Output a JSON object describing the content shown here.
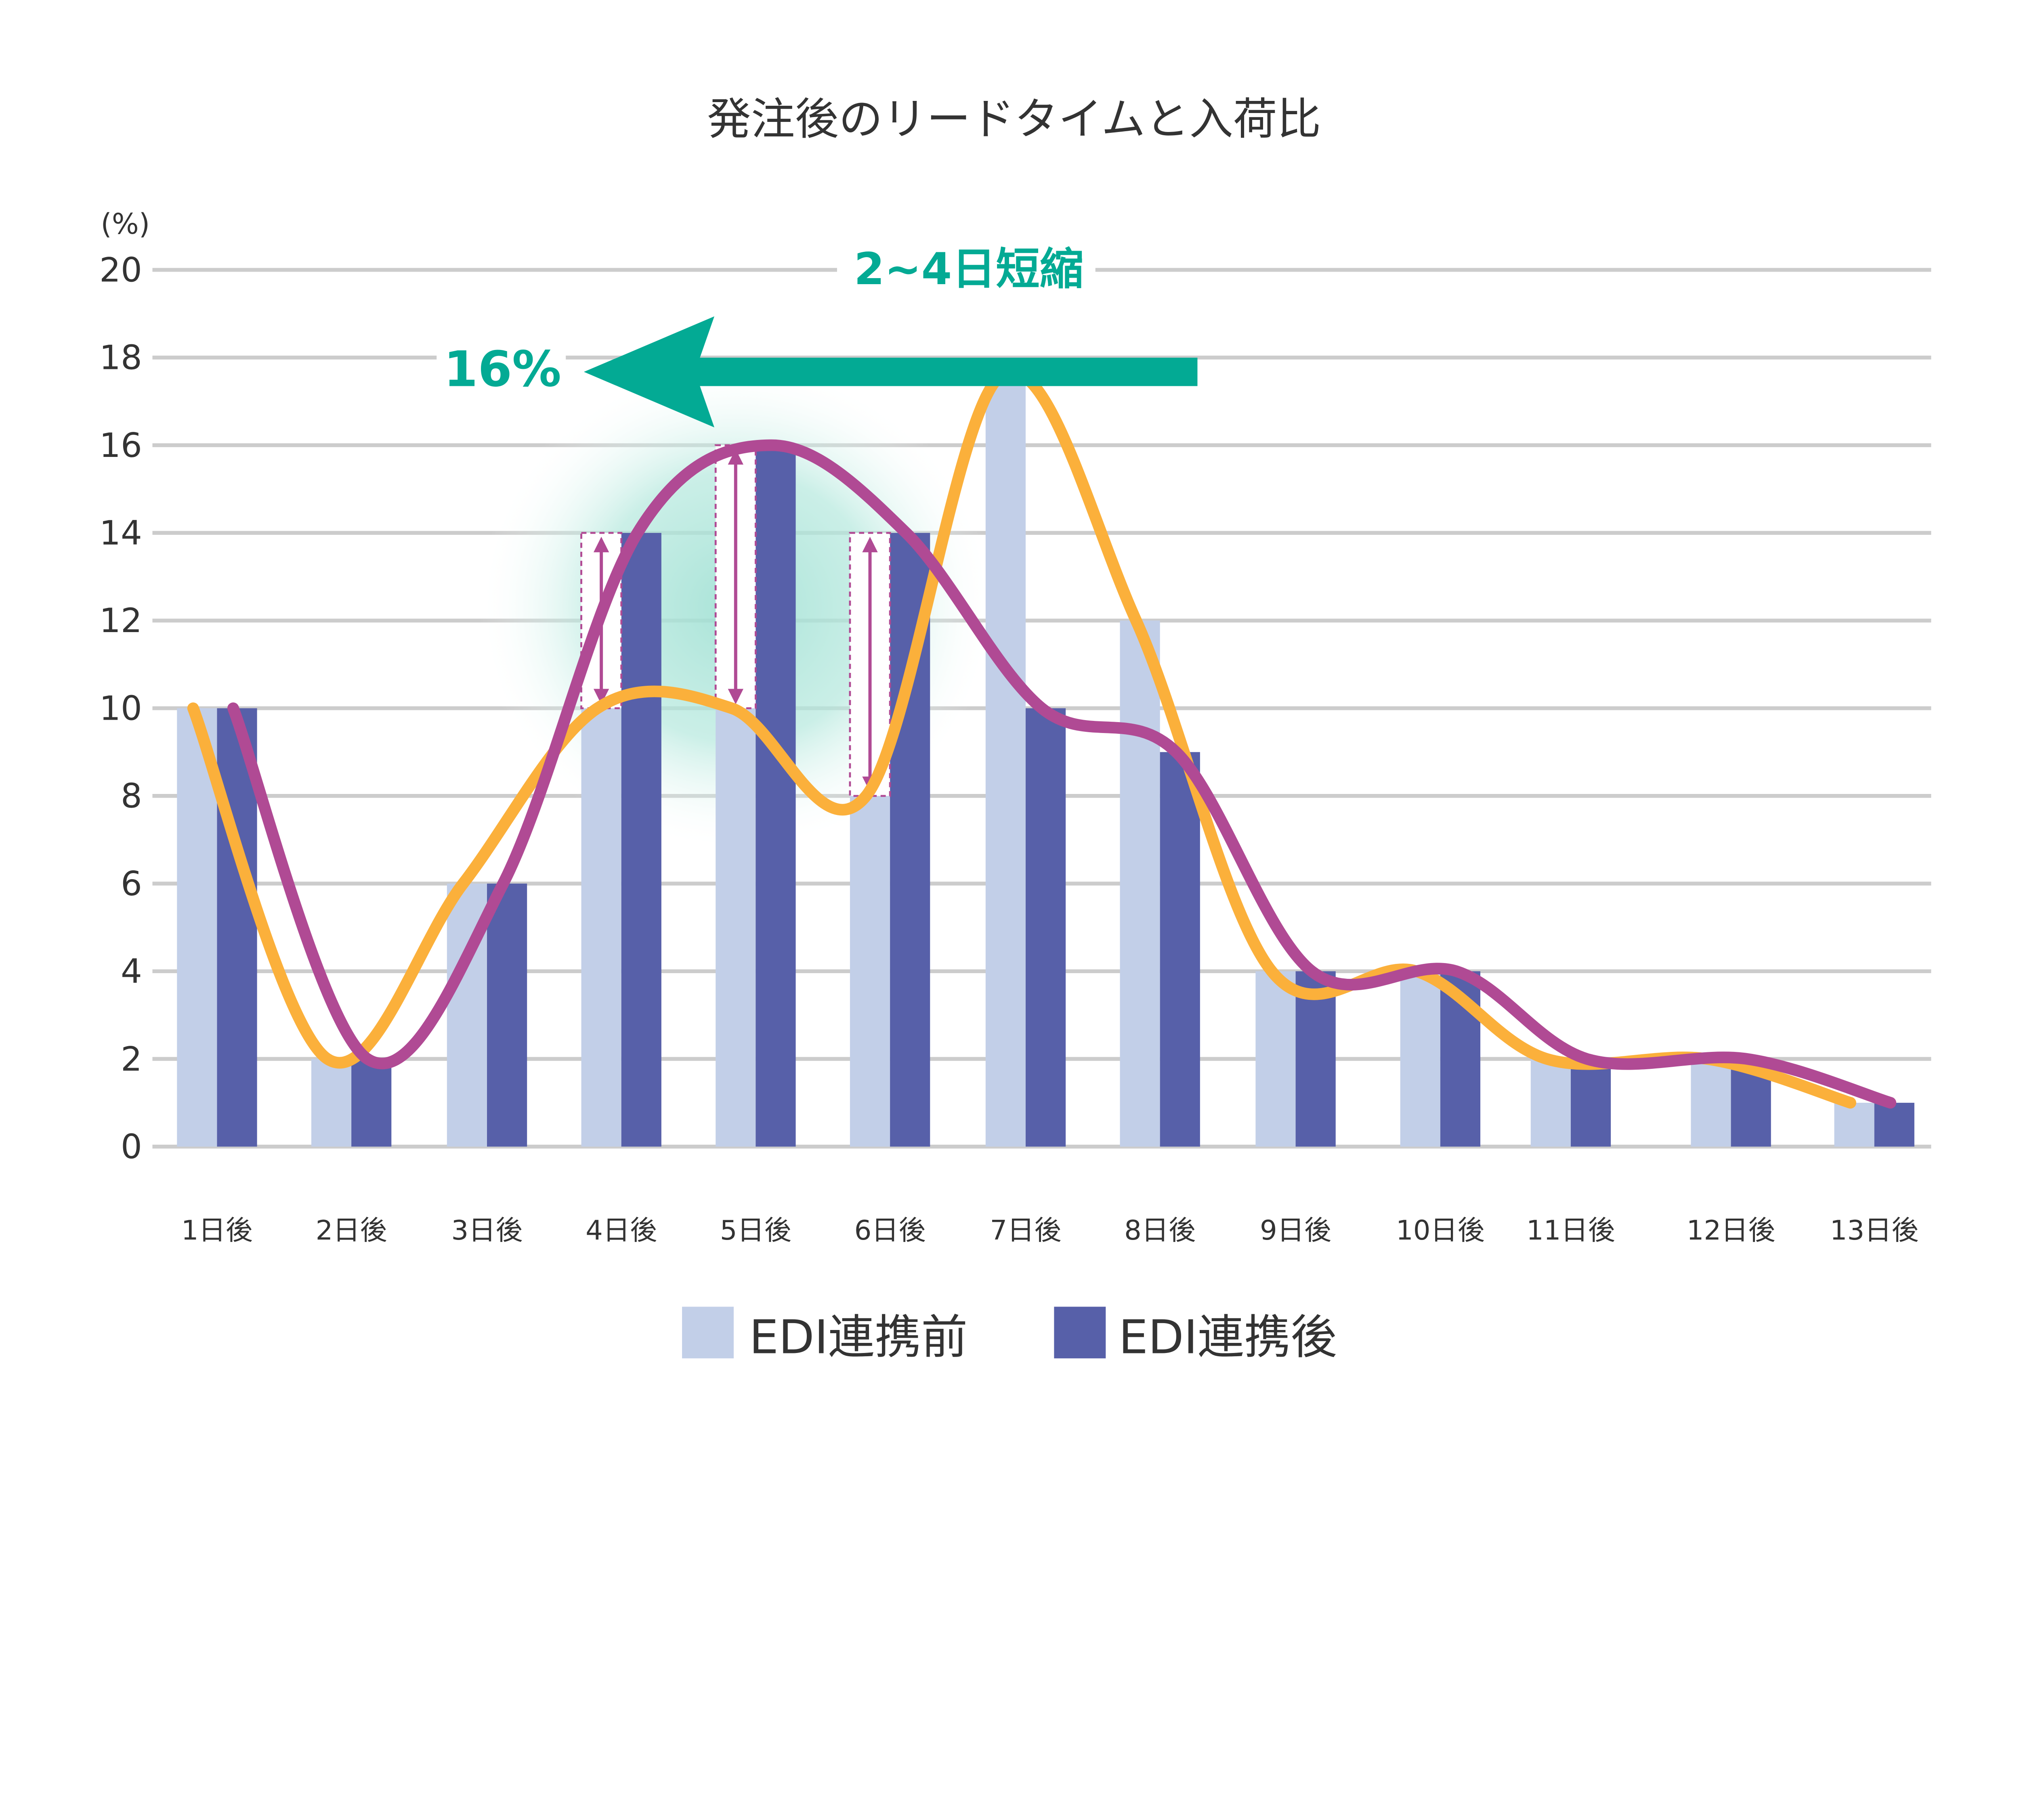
{
  "chart_data": {
    "type": "bar",
    "title": "発注後のリードタイムと入荷比",
    "ylabel": "(%)",
    "ylim": [
      0,
      20
    ],
    "yticks": [
      0,
      2,
      4,
      6,
      8,
      10,
      12,
      14,
      16,
      18,
      20
    ],
    "grid": true,
    "legend_position": "bottom",
    "categories": [
      "1日後",
      "2日後",
      "3日後",
      "4日後",
      "5日後",
      "6日後",
      "7日後",
      "8日後",
      "9日後",
      "10日後",
      "11日後",
      "12日後",
      "13日後"
    ],
    "series": [
      {
        "name": "EDI連携前",
        "values": [
          10,
          2,
          6,
          10,
          10,
          8,
          18,
          12,
          4,
          4,
          2,
          2,
          1
        ],
        "color": "#C2CFE8",
        "line_color": "#FBB03B"
      },
      {
        "name": "EDI連携後",
        "values": [
          10,
          2,
          6,
          14,
          16,
          14,
          10,
          9,
          4,
          4,
          2,
          2,
          1
        ],
        "color": "#5760A9",
        "line_color": "#B04A94"
      }
    ],
    "annotations": {
      "shift_label": "2~4日短縮",
      "percent_label": "16%",
      "accent_color": "#03AA94",
      "highlighted_categories": [
        "4日後",
        "5日後",
        "6日後"
      ]
    }
  }
}
